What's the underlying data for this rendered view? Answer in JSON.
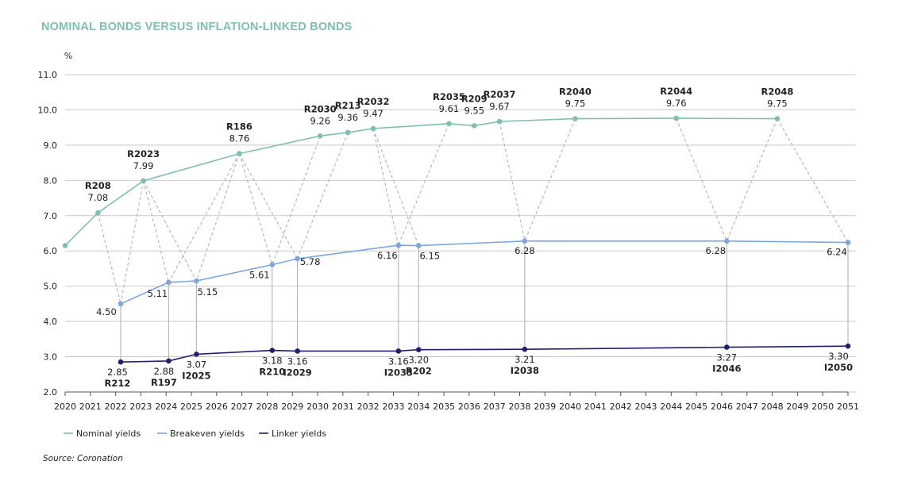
{
  "title": "NOMINAL BONDS VERSUS INFLATION-LINKED BONDS",
  "source": "Source: Coronation",
  "colors": {
    "title": "#7fbfb0",
    "nominal": "#7fbfb0",
    "breakeven": "#7ba7e0",
    "linker": "#1f2170",
    "grid": "#c9c9c9",
    "connector": "#b3b3b3",
    "text": "#222222"
  },
  "chart_data": {
    "type": "line",
    "ylabel": "%",
    "xlabel": "",
    "xlim": [
      2020,
      2051
    ],
    "ylim": [
      2.0,
      11.0
    ],
    "y_ticks": [
      "2.0",
      "3.0",
      "4.0",
      "5.0",
      "6.0",
      "7.0",
      "8.0",
      "9.0",
      "10.0",
      "11.0"
    ],
    "x_ticks": [
      "2020",
      "2021",
      "2022",
      "2023",
      "2024",
      "2025",
      "2026",
      "2027",
      "2028",
      "2029",
      "2030",
      "2031",
      "2032",
      "2033",
      "2034",
      "2035",
      "2036",
      "2037",
      "2038",
      "2039",
      "2040",
      "2041",
      "2042",
      "2043",
      "2044",
      "2045",
      "2046",
      "2047",
      "2048",
      "2049",
      "2050",
      "2051"
    ],
    "grid": true,
    "legend_position": "bottom-left",
    "series": [
      {
        "name": "Nominal yields",
        "color": "#7fbfb0",
        "points": [
          {
            "x": 2020,
            "y": 6.15
          },
          {
            "x": 2021.3,
            "y": 7.08,
            "bond": "R208",
            "label": "7.08"
          },
          {
            "x": 2023.1,
            "y": 7.99,
            "bond": "R2023",
            "label": "7.99"
          },
          {
            "x": 2026.9,
            "y": 8.76,
            "bond": "R186",
            "label": "8.76"
          },
          {
            "x": 2030.1,
            "y": 9.26,
            "bond": "R2030",
            "label": "9.26"
          },
          {
            "x": 2031.2,
            "y": 9.36,
            "bond": "R213",
            "label": "9.36"
          },
          {
            "x": 2032.2,
            "y": 9.47,
            "bond": "R2032",
            "label": "9.47"
          },
          {
            "x": 2035.2,
            "y": 9.61,
            "bond": "R2035",
            "label": "9.61"
          },
          {
            "x": 2036.2,
            "y": 9.55,
            "bond": "R209",
            "label": "9.55"
          },
          {
            "x": 2037.2,
            "y": 9.67,
            "bond": "R2037",
            "label": "9.67"
          },
          {
            "x": 2040.2,
            "y": 9.75,
            "bond": "R2040",
            "label": "9.75"
          },
          {
            "x": 2044.2,
            "y": 9.76,
            "bond": "R2044",
            "label": "9.76"
          },
          {
            "x": 2048.2,
            "y": 9.75,
            "bond": "R2048",
            "label": "9.75"
          }
        ]
      },
      {
        "name": "Breakeven yields",
        "color": "#7ba7e0",
        "points": [
          {
            "x": 2022.2,
            "y": 4.5,
            "label": "4.50"
          },
          {
            "x": 2024.1,
            "y": 5.11,
            "label": "5.11"
          },
          {
            "x": 2025.2,
            "y": 5.15,
            "label": "5.15"
          },
          {
            "x": 2028.2,
            "y": 5.61,
            "label": "5.61"
          },
          {
            "x": 2029.2,
            "y": 5.78,
            "label": "5.78"
          },
          {
            "x": 2033.2,
            "y": 6.16,
            "label": "6.16"
          },
          {
            "x": 2034.0,
            "y": 6.15,
            "label": "6.15"
          },
          {
            "x": 2038.2,
            "y": 6.28,
            "label": "6.28"
          },
          {
            "x": 2046.2,
            "y": 6.28,
            "label": "6.28"
          },
          {
            "x": 2051.0,
            "y": 6.24,
            "label": "6.24"
          }
        ]
      },
      {
        "name": "Linker yields",
        "color": "#1f2170",
        "points": [
          {
            "x": 2022.2,
            "y": 2.85,
            "bond": "R212",
            "label": "2.85"
          },
          {
            "x": 2024.1,
            "y": 2.88,
            "bond": "R197",
            "label": "2.88"
          },
          {
            "x": 2025.2,
            "y": 3.07,
            "bond": "I2025",
            "label": "3.07"
          },
          {
            "x": 2028.2,
            "y": 3.18,
            "bond": "R210",
            "label": "3.18"
          },
          {
            "x": 2029.2,
            "y": 3.16,
            "bond": "I2029",
            "label": "3.16"
          },
          {
            "x": 2033.2,
            "y": 3.16,
            "bond": "I2033",
            "label": "3.16"
          },
          {
            "x": 2034.0,
            "y": 3.2,
            "bond": "R202",
            "label": "3.20"
          },
          {
            "x": 2038.2,
            "y": 3.21,
            "bond": "I2038",
            "label": "3.21"
          },
          {
            "x": 2046.2,
            "y": 3.27,
            "bond": "I2046",
            "label": "3.27"
          },
          {
            "x": 2051.0,
            "y": 3.3,
            "bond": "I2050",
            "label": "3.30"
          }
        ]
      }
    ],
    "connectors": [
      [
        2021.3,
        7.08,
        2022.2,
        4.5
      ],
      [
        2023.1,
        7.99,
        2022.2,
        4.5
      ],
      [
        2023.1,
        7.99,
        2024.1,
        5.11
      ],
      [
        2023.1,
        7.99,
        2025.2,
        5.15
      ],
      [
        2026.9,
        8.76,
        2024.1,
        5.11
      ],
      [
        2026.9,
        8.76,
        2025.2,
        5.15
      ],
      [
        2026.9,
        8.76,
        2028.2,
        5.61
      ],
      [
        2026.9,
        8.76,
        2029.2,
        5.78
      ],
      [
        2030.1,
        9.26,
        2028.2,
        5.61
      ],
      [
        2031.2,
        9.36,
        2029.2,
        5.78
      ],
      [
        2032.2,
        9.47,
        2033.2,
        6.16
      ],
      [
        2032.2,
        9.47,
        2034.0,
        6.15
      ],
      [
        2035.2,
        9.61,
        2033.2,
        6.16
      ],
      [
        2037.2,
        9.67,
        2038.2,
        6.28
      ],
      [
        2040.2,
        9.75,
        2038.2,
        6.28
      ],
      [
        2044.2,
        9.76,
        2046.2,
        6.28
      ],
      [
        2048.2,
        9.75,
        2046.2,
        6.28
      ],
      [
        2048.2,
        9.75,
        2051.0,
        6.24
      ]
    ]
  }
}
